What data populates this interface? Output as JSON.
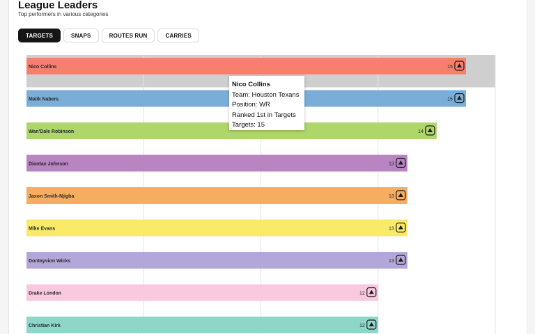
{
  "header": {
    "title": "League Leaders",
    "subtitle": "Top performers in various categories"
  },
  "tabs": [
    {
      "label": "TARGETS",
      "active": true
    },
    {
      "label": "SNAPS",
      "active": false
    },
    {
      "label": "ROUTES RUN",
      "active": false
    },
    {
      "label": "CARRIES",
      "active": false
    }
  ],
  "chart_data": {
    "type": "bar",
    "orientation": "horizontal",
    "title": "League Leaders",
    "metric": "Targets",
    "grid": true,
    "categories": [
      "Nico Collins",
      "Malik Nabers",
      "Wan'Dale Robinson",
      "Diontae Johnson",
      "Jaxon Smith-Njigba",
      "Mike Evans",
      "Dontayvion Wicks",
      "Drake London",
      "Christian Kirk"
    ],
    "values": [
      15,
      15,
      14,
      13,
      13,
      13,
      13,
      12,
      12
    ],
    "colors": [
      "#f67f6e",
      "#7aaed8",
      "#aed66a",
      "#b884c2",
      "#f6ad62",
      "#faea6a",
      "#b3a6d8",
      "#f9c9e2",
      "#8dd6c8"
    ],
    "team_icons": [
      "texans-logo-icon",
      "giants-logo-icon",
      "giants-logo-icon",
      "panthers-logo-icon",
      "seahawks-logo-icon",
      "buccaneers-logo-icon",
      "packers-logo-icon",
      "falcons-logo-icon",
      "jaguars-logo-icon"
    ],
    "xlim": [
      0,
      16
    ],
    "highlight_index": 0,
    "highlight_color": "#cfcfcf"
  },
  "tooltip": {
    "name": "Nico Collins",
    "team": "Team: Houston Texans",
    "position": "Position: WR",
    "rank": "Ranked 1st in Targets",
    "value": "Targets: 15"
  }
}
